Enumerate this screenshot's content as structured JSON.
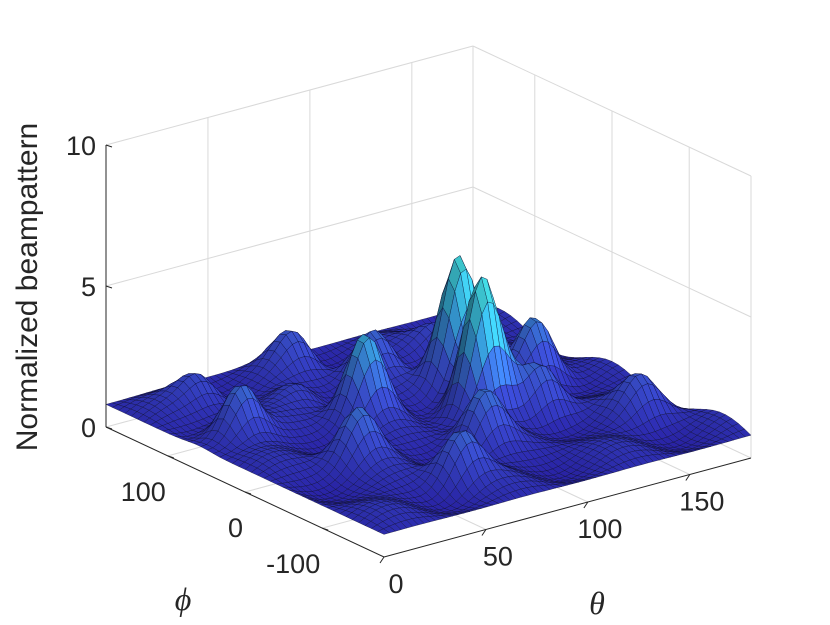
{
  "chart_data": {
    "type": "surface",
    "title": "",
    "xlabel": "θ",
    "ylabel": "ϕ",
    "zlabel": "Normalized beampattern",
    "xlim": [
      0,
      180
    ],
    "ylim": [
      -180,
      180
    ],
    "zlim": [
      0,
      10
    ],
    "xticks": [
      {
        "value": 0,
        "label": "0"
      },
      {
        "value": 50,
        "label": "50"
      },
      {
        "value": 100,
        "label": "100"
      },
      {
        "value": 150,
        "label": "150"
      }
    ],
    "yticks": [
      {
        "value": -100,
        "label": "-100"
      },
      {
        "value": 0,
        "label": "0"
      },
      {
        "value": 100,
        "label": "100"
      }
    ],
    "zticks": [
      {
        "value": 0,
        "label": "0"
      },
      {
        "value": 5,
        "label": "5"
      },
      {
        "value": 10,
        "label": "10"
      }
    ],
    "grid": true,
    "colormap": [
      "#2a1fae",
      "#3a4fd0",
      "#35a9d6",
      "#3fd0cc"
    ],
    "peaks": [
      {
        "theta": 110,
        "phi": -15,
        "value": 5.8
      },
      {
        "theta": 120,
        "phi": 40,
        "value": 5.6
      },
      {
        "theta": 70,
        "phi": 30,
        "value": 3.8
      },
      {
        "theta": 150,
        "phi": 20,
        "value": 3.2
      },
      {
        "theta": 20,
        "phi": 60,
        "value": 2.9
      },
      {
        "theta": 40,
        "phi": -40,
        "value": 2.7
      },
      {
        "theta": 90,
        "phi": -70,
        "value": 2.6
      },
      {
        "theta": 60,
        "phi": -120,
        "value": 2.5
      },
      {
        "theta": 130,
        "phi": -40,
        "value": 2.5
      },
      {
        "theta": 100,
        "phi": 100,
        "value": 2.4
      },
      {
        "theta": 160,
        "phi": -90,
        "value": 2.0
      },
      {
        "theta": 30,
        "phi": 140,
        "value": 1.9
      },
      {
        "theta": 80,
        "phi": 150,
        "value": 2.1
      },
      {
        "theta": 140,
        "phi": 120,
        "value": 1.7
      },
      {
        "theta": 60,
        "phi": 90,
        "value": 1.6
      }
    ],
    "baseline": 0.8
  }
}
